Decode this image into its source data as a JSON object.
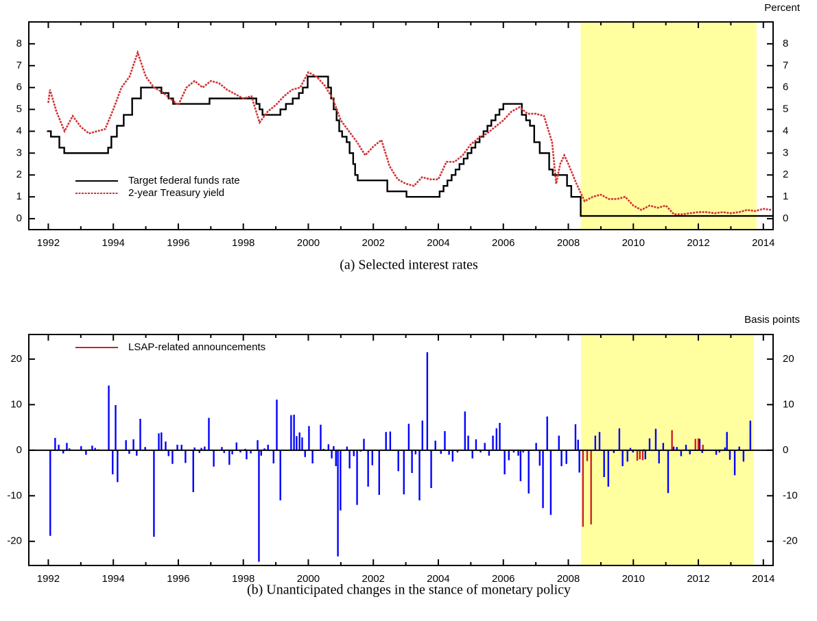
{
  "chart_data": [
    {
      "type": "line",
      "title": "(a) Selected interest rates",
      "ylabel": "Percent",
      "xlim": [
        1991.4,
        2014.3
      ],
      "ylim": [
        -0.5,
        9
      ],
      "xticks": [
        1992,
        1994,
        1996,
        1998,
        2000,
        2002,
        2004,
        2006,
        2008,
        2010,
        2012,
        2014
      ],
      "xminor_ticks": [
        1993,
        1995,
        1997,
        1999,
        2001,
        2003,
        2005,
        2007,
        2009,
        2011,
        2013
      ],
      "yticks": [
        0,
        1,
        2,
        3,
        4,
        5,
        6,
        7,
        8
      ],
      "shade": [
        2008.38,
        2013.79
      ],
      "shade_color": "#ffffa0",
      "legend": "lower left",
      "series": [
        {
          "name": "Target federal funds rate",
          "color": "#000000",
          "step": true,
          "x": [
            1991.96,
            1992.08,
            1992.34,
            1992.49,
            1993.84,
            1993.94,
            1994.11,
            1994.32,
            1994.58,
            1994.85,
            1995.48,
            1995.7,
            1995.84,
            1996.96,
            1998.4,
            1998.5,
            1998.59,
            1999.14,
            1999.31,
            1999.52,
            1999.71,
            1999.83,
            1999.98,
            2000.61,
            2000.7,
            2000.78,
            2000.87,
            2000.95,
            2001.04,
            2001.18,
            2001.27,
            2001.38,
            2001.44,
            2001.52,
            2002.43,
            2003.02,
            2004.04,
            2004.16,
            2004.28,
            2004.41,
            2004.53,
            2004.65,
            2004.78,
            2004.9,
            2005.02,
            2005.14,
            2005.27,
            2005.39,
            2005.51,
            2005.63,
            2005.76,
            2005.88,
            2006.0,
            2006.57,
            2006.7,
            2006.82,
            2006.95,
            2007.12,
            2007.41,
            2007.52,
            2007.96,
            2008.09,
            2008.38,
            2014.3
          ],
          "values": [
            4.0,
            3.75,
            3.25,
            3.0,
            3.25,
            3.75,
            4.25,
            4.75,
            5.5,
            6.0,
            5.75,
            5.5,
            5.25,
            5.5,
            5.25,
            5.0,
            4.75,
            5.0,
            5.25,
            5.5,
            5.75,
            6.0,
            6.5,
            6.0,
            5.5,
            5.0,
            4.5,
            4.0,
            3.75,
            3.5,
            3.0,
            2.5,
            2.0,
            1.75,
            1.25,
            1.0,
            1.25,
            1.5,
            1.75,
            2.0,
            2.25,
            2.5,
            2.75,
            3.0,
            3.25,
            3.5,
            3.75,
            4.0,
            4.25,
            4.5,
            4.75,
            5.0,
            5.25,
            4.75,
            4.5,
            4.25,
            3.5,
            3.0,
            2.25,
            2.0,
            1.5,
            1.0,
            0.125,
            0.125
          ]
        },
        {
          "name": "2-year Treasury yield",
          "color": "#d03232",
          "dashed": true,
          "x": [
            1992.0,
            1992.05,
            1992.25,
            1992.5,
            1992.75,
            1993.0,
            1993.25,
            1993.5,
            1993.75,
            1994.0,
            1994.25,
            1994.5,
            1994.75,
            1995.0,
            1995.25,
            1995.5,
            1995.75,
            1996.0,
            1996.25,
            1996.5,
            1996.75,
            1997.0,
            1997.25,
            1997.5,
            1997.75,
            1998.0,
            1998.25,
            1998.5,
            1998.75,
            1999.0,
            1999.25,
            1999.5,
            1999.75,
            2000.0,
            2000.25,
            2000.5,
            2000.75,
            2001.0,
            2001.25,
            2001.5,
            2001.75,
            2002.0,
            2002.25,
            2002.5,
            2002.75,
            2003.0,
            2003.25,
            2003.5,
            2003.75,
            2004.0,
            2004.25,
            2004.5,
            2004.75,
            2005.0,
            2005.25,
            2005.5,
            2005.75,
            2006.0,
            2006.25,
            2006.5,
            2006.75,
            2007.0,
            2007.25,
            2007.5,
            2007.625,
            2007.75,
            2007.875,
            2008.0,
            2008.25,
            2008.5,
            2008.75,
            2009.0,
            2009.25,
            2009.5,
            2009.75,
            2010.0,
            2010.25,
            2010.5,
            2010.75,
            2011.0,
            2011.25,
            2011.5,
            2011.75,
            2012.0,
            2012.25,
            2012.5,
            2012.75,
            2013.0,
            2013.25,
            2013.5,
            2013.75,
            2014.0,
            2014.25
          ],
          "values": [
            5.3,
            5.9,
            4.9,
            4.0,
            4.7,
            4.2,
            3.9,
            4.0,
            4.1,
            5.0,
            6.0,
            6.5,
            7.6,
            6.5,
            6.0,
            5.8,
            5.5,
            5.2,
            6.0,
            6.3,
            6.0,
            6.3,
            6.2,
            5.9,
            5.7,
            5.5,
            5.6,
            4.4,
            4.9,
            5.2,
            5.6,
            5.9,
            6.0,
            6.7,
            6.5,
            6.1,
            5.5,
            4.5,
            4.0,
            3.5,
            2.9,
            3.3,
            3.6,
            2.4,
            1.8,
            1.6,
            1.5,
            1.9,
            1.8,
            1.8,
            2.6,
            2.6,
            2.9,
            3.4,
            3.7,
            3.9,
            4.2,
            4.5,
            4.9,
            5.1,
            4.8,
            4.8,
            4.7,
            3.5,
            1.6,
            2.5,
            2.9,
            2.5,
            1.6,
            0.8,
            1.0,
            1.1,
            0.9,
            0.9,
            1.0,
            0.6,
            0.4,
            0.6,
            0.5,
            0.6,
            0.2,
            0.2,
            0.25,
            0.3,
            0.3,
            0.25,
            0.3,
            0.25,
            0.3,
            0.4,
            0.35,
            0.45,
            0.4
          ]
        }
      ]
    },
    {
      "type": "bar",
      "title": "(b) Unanticipated changes in the stance of monetary policy",
      "ylabel": "Basis points",
      "xlim": [
        1991.4,
        2014.3
      ],
      "ylim": [
        -25.3,
        25.4
      ],
      "xticks": [
        1992,
        1994,
        1996,
        1998,
        2000,
        2002,
        2004,
        2006,
        2008,
        2010,
        2012,
        2014
      ],
      "xminor_ticks": [
        1993,
        1995,
        1997,
        1999,
        2001,
        2003,
        2005,
        2007,
        2009,
        2011,
        2013
      ],
      "yticks": [
        -20,
        -10,
        0,
        10,
        20
      ],
      "shade": [
        2008.39,
        2013.71
      ],
      "shade_color": "#ffffa0",
      "legend": "upper left",
      "series": [
        {
          "color": "#0000ff",
          "x": [
            1992.06,
            1992.21,
            1992.32,
            1992.46,
            1992.57,
            1992.65,
            1993.01,
            1993.16,
            1993.27,
            1993.35,
            1993.44,
            1993.54,
            1993.86,
            1993.98,
            1994.07,
            1994.13,
            1994.39,
            1994.49,
            1994.62,
            1994.72,
            1994.83,
            1994.98,
            1995.25,
            1995.4,
            1995.48,
            1995.61,
            1995.7,
            1995.82,
            1995.97,
            1996.1,
            1996.22,
            1996.46,
            1996.5,
            1996.65,
            1996.71,
            1996.81,
            1996.94,
            1997.09,
            1997.34,
            1997.41,
            1997.57,
            1997.66,
            1997.79,
            1997.91,
            1998.06,
            1998.1,
            1998.23,
            1998.44,
            1998.48,
            1998.55,
            1998.65,
            1998.76,
            1998.93,
            1999.03,
            1999.14,
            1999.47,
            1999.56,
            1999.64,
            1999.73,
            1999.81,
            1999.9,
            2000.02,
            2000.13,
            2000.38,
            2000.47,
            2000.62,
            2000.72,
            2000.78,
            2000.85,
            2000.91,
            2000.99,
            2001.19,
            2001.27,
            2001.4,
            2001.5,
            2001.61,
            2001.71,
            2001.84,
            2001.97,
            2002.18,
            2002.39,
            2002.52,
            2002.77,
            2002.94,
            2003.09,
            2003.19,
            2003.3,
            2003.42,
            2003.51,
            2003.66,
            2003.78,
            2003.91,
            2004.08,
            2004.2,
            2004.33,
            2004.44,
            2004.59,
            2004.82,
            2004.92,
            2005.05,
            2005.16,
            2005.3,
            2005.43,
            2005.56,
            2005.68,
            2005.79,
            2005.89,
            2006.04,
            2006.17,
            2006.32,
            2006.46,
            2006.53,
            2006.61,
            2006.78,
            2007.01,
            2007.12,
            2007.22,
            2007.35,
            2007.46,
            2007.71,
            2007.79,
            2007.94,
            2008.22,
            2008.3,
            2008.34,
            2008.83,
            2008.96,
            2009.1,
            2009.23,
            2009.4,
            2009.57,
            2009.67,
            2009.82,
            2009.91,
            2009.99,
            2010.33,
            2010.37,
            2010.5,
            2010.69,
            2010.79,
            2010.92,
            2011.07,
            2011.24,
            2011.34,
            2011.47,
            2011.62,
            2011.74,
            2012.04,
            2012.12,
            2012.55,
            2012.65,
            2012.82,
            2012.88,
            2012.97,
            2013.12,
            2013.26,
            2013.39,
            2013.6
          ],
          "values": [
            -18.8,
            2.7,
            1.2,
            -0.7,
            1.6,
            0.4,
            0.9,
            -1.0,
            0.2,
            1.0,
            0.5,
            0.2,
            14.2,
            -5.3,
            9.9,
            -7.0,
            2.2,
            -0.8,
            2.4,
            -1.2,
            6.9,
            0.7,
            -19.0,
            3.7,
            3.9,
            1.9,
            -1.3,
            -3.0,
            1.2,
            1.2,
            -2.8,
            -9.2,
            0.6,
            -0.6,
            0.5,
            0.8,
            7.1,
            -3.6,
            0.7,
            -0.6,
            -3.2,
            -0.9,
            1.7,
            -0.5,
            0.3,
            -2.0,
            -0.7,
            2.2,
            -24.5,
            -1.2,
            0.4,
            1.2,
            -2.9,
            11.1,
            -11.0,
            7.7,
            7.8,
            3.1,
            3.9,
            2.8,
            -1.5,
            5.3,
            -2.9,
            5.6,
            0.3,
            1.3,
            -1.8,
            0.9,
            -3.5,
            -23.3,
            -13.2,
            0.8,
            -4.0,
            -1.3,
            -12.0,
            -0.3,
            2.5,
            -8.0,
            -3.3,
            -9.8,
            4.0,
            4.1,
            -4.6,
            -9.7,
            5.8,
            -5.0,
            -0.9,
            -11.0,
            6.5,
            21.5,
            -8.3,
            2.1,
            -0.8,
            4.2,
            -1.0,
            -2.5,
            -0.5,
            8.5,
            3.2,
            -1.8,
            2.4,
            -0.5,
            1.6,
            -1.2,
            3.2,
            4.8,
            6.0,
            -5.3,
            -2.2,
            -0.5,
            -1.2,
            -6.8,
            -0.5,
            -9.5,
            1.6,
            -3.4,
            -12.7,
            7.4,
            -14.2,
            3.2,
            -3.5,
            -3.0,
            5.7,
            2.3,
            -4.9,
            3.2,
            4.0,
            -5.9,
            -8.0,
            -0.6,
            4.8,
            -3.5,
            -2.5,
            0.5,
            -0.5,
            0.2,
            -2.0,
            2.6,
            4.7,
            -2.9,
            1.6,
            -9.4,
            0.8,
            0.7,
            -1.3,
            1.2,
            -0.9,
            2.5,
            -0.6,
            -1.0,
            -0.5,
            0.6,
            4.0,
            -2.1,
            -5.5,
            0.8,
            -2.5,
            6.5
          ]
        },
        {
          "name": "LSAP-related announcements",
          "color": "#cc2222",
          "x": [
            2008.45,
            2008.58,
            2008.7,
            2010.12,
            2010.2,
            2010.29,
            2011.19,
            2011.91,
            2012.0,
            2012.14
          ],
          "values": [
            -16.8,
            -2.4,
            -16.3,
            -2.3,
            -2.0,
            -2.2,
            4.4,
            2.5,
            2.6,
            1.2
          ]
        }
      ]
    }
  ]
}
